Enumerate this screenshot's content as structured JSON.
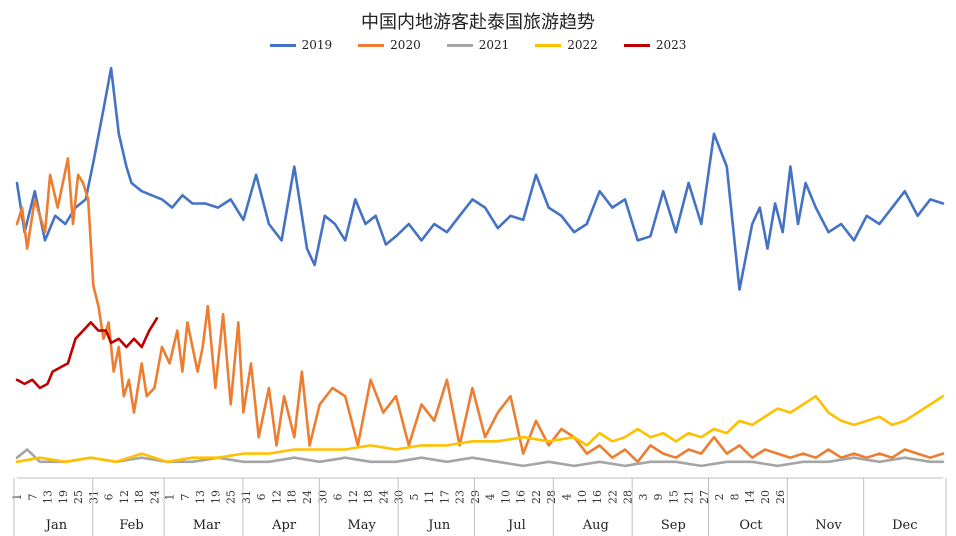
{
  "chart_data": {
    "type": "line",
    "title": "中国内地游客赴泰国旅游趋势",
    "xlabel": "",
    "ylabel": "",
    "months": [
      "Jan",
      "Feb",
      "Mar",
      "Apr",
      "May",
      "Jun",
      "Jul",
      "Aug",
      "Sep",
      "Oct",
      "Nov",
      "Dec"
    ],
    "month_days": [
      31,
      28,
      31,
      30,
      31,
      30,
      31,
      31,
      30,
      31,
      30,
      31
    ],
    "tick_labels": [
      "1",
      "7",
      "13",
      "19",
      "25",
      "31",
      "6",
      "12",
      "18",
      "24",
      "1",
      "7",
      "13",
      "19",
      "25",
      "31",
      "6",
      "12",
      "18",
      "24",
      "30",
      "6",
      "12",
      "18",
      "24",
      "30",
      "5",
      "11",
      "17",
      "23",
      "29",
      "4",
      "10",
      "16",
      "22",
      "28",
      "4",
      "10",
      "16",
      "22",
      "28",
      "3",
      "9",
      "15",
      "21",
      "27",
      "2",
      "8",
      "14",
      "20",
      "26"
    ],
    "ylim": [
      0,
      100
    ],
    "series": [
      {
        "name": "2019",
        "color": "#4472c4",
        "days": [
          1,
          4,
          8,
          12,
          16,
          20,
          24,
          28,
          31,
          35,
          38,
          41,
          44,
          46,
          50,
          54,
          58,
          62,
          66,
          70,
          75,
          80,
          85,
          90,
          95,
          100,
          105,
          110,
          115,
          118,
          122,
          126,
          130,
          134,
          138,
          142,
          146,
          150,
          155,
          160,
          165,
          170,
          175,
          180,
          185,
          190,
          195,
          200,
          205,
          210,
          215,
          220,
          225,
          230,
          235,
          240,
          245,
          250,
          255,
          260,
          265,
          270,
          275,
          280,
          285,
          290,
          293,
          296,
          299,
          302,
          305,
          308,
          311,
          315,
          320,
          325,
          330,
          335,
          340,
          345,
          350,
          355,
          360,
          365
        ],
        "values": [
          70,
          58,
          68,
          56,
          62,
          60,
          64,
          66,
          75,
          88,
          98,
          82,
          74,
          70,
          68,
          67,
          66,
          64,
          67,
          65,
          65,
          64,
          66,
          61,
          72,
          60,
          56,
          74,
          54,
          50,
          62,
          60,
          56,
          66,
          60,
          62,
          55,
          57,
          60,
          56,
          60,
          58,
          62,
          66,
          64,
          59,
          62,
          61,
          72,
          64,
          62,
          58,
          60,
          68,
          64,
          66,
          56,
          57,
          68,
          58,
          70,
          60,
          82,
          74,
          44,
          60,
          64,
          54,
          65,
          58,
          74,
          60,
          70,
          64,
          58,
          60,
          56,
          62,
          60,
          64,
          68,
          62,
          66,
          65
        ]
      },
      {
        "name": "2020",
        "color": "#ed7d31",
        "days": [
          1,
          3,
          5,
          8,
          10,
          12,
          14,
          17,
          19,
          21,
          23,
          25,
          27,
          29,
          31,
          33,
          35,
          37,
          39,
          41,
          43,
          45,
          47,
          50,
          52,
          55,
          58,
          61,
          64,
          66,
          68,
          72,
          74,
          76,
          79,
          82,
          85,
          88,
          90,
          93,
          96,
          100,
          103,
          106,
          110,
          113,
          116,
          120,
          125,
          130,
          135,
          140,
          145,
          150,
          155,
          160,
          165,
          170,
          175,
          180,
          185,
          190,
          195,
          200,
          205,
          210,
          215,
          220,
          225,
          230,
          235,
          240,
          245,
          250,
          255,
          260,
          265,
          270,
          275,
          280,
          285,
          290,
          295,
          300,
          305,
          310,
          315,
          320,
          325,
          330,
          335,
          340,
          345,
          350,
          355,
          360,
          365
        ],
        "values": [
          60,
          64,
          54,
          66,
          62,
          58,
          72,
          64,
          70,
          76,
          60,
          72,
          70,
          66,
          45,
          40,
          32,
          36,
          24,
          30,
          18,
          22,
          14,
          26,
          18,
          20,
          30,
          26,
          34,
          24,
          36,
          24,
          30,
          40,
          20,
          38,
          16,
          36,
          14,
          26,
          8,
          20,
          6,
          18,
          8,
          24,
          6,
          16,
          20,
          18,
          6,
          22,
          14,
          18,
          6,
          16,
          12,
          22,
          6,
          20,
          8,
          14,
          18,
          4,
          12,
          6,
          10,
          8,
          4,
          6,
          3,
          5,
          2,
          6,
          4,
          3,
          5,
          4,
          8,
          4,
          6,
          3,
          5,
          4,
          3,
          4,
          3,
          5,
          3,
          4,
          3,
          4,
          3,
          5,
          4,
          3,
          4
        ]
      },
      {
        "name": "2021",
        "color": "#a5a5a5",
        "days": [
          1,
          5,
          10,
          20,
          30,
          40,
          50,
          60,
          70,
          80,
          90,
          100,
          110,
          120,
          130,
          140,
          150,
          160,
          170,
          180,
          190,
          200,
          210,
          220,
          230,
          240,
          250,
          260,
          270,
          280,
          290,
          300,
          310,
          320,
          330,
          340,
          350,
          360,
          365
        ],
        "values": [
          3,
          5,
          2,
          2,
          3,
          2,
          3,
          2,
          2,
          3,
          2,
          2,
          3,
          2,
          3,
          2,
          2,
          3,
          2,
          3,
          2,
          1,
          2,
          1,
          2,
          1,
          2,
          2,
          1,
          2,
          2,
          1,
          2,
          2,
          3,
          2,
          3,
          2,
          2
        ]
      },
      {
        "name": "2022",
        "color": "#ffc000",
        "days": [
          1,
          10,
          20,
          30,
          40,
          50,
          60,
          70,
          80,
          90,
          100,
          110,
          120,
          130,
          140,
          150,
          160,
          170,
          180,
          190,
          200,
          210,
          220,
          225,
          230,
          235,
          240,
          245,
          250,
          255,
          260,
          265,
          270,
          275,
          280,
          285,
          290,
          295,
          300,
          305,
          310,
          315,
          320,
          325,
          330,
          335,
          340,
          345,
          350,
          355,
          360,
          365
        ],
        "values": [
          2,
          3,
          2,
          3,
          2,
          4,
          2,
          3,
          3,
          4,
          4,
          5,
          5,
          5,
          6,
          5,
          6,
          6,
          7,
          7,
          8,
          7,
          8,
          6,
          9,
          7,
          8,
          10,
          8,
          9,
          7,
          9,
          8,
          10,
          9,
          12,
          11,
          13,
          15,
          14,
          16,
          18,
          14,
          12,
          11,
          12,
          13,
          11,
          12,
          14,
          16,
          18
        ]
      },
      {
        "name": "2023",
        "color": "#c00000",
        "days": [
          1,
          4,
          7,
          10,
          13,
          15,
          18,
          21,
          24,
          27,
          30,
          33,
          36,
          38,
          41,
          44,
          47,
          50,
          53,
          56
        ],
        "values": [
          22,
          21,
          22,
          20,
          21,
          24,
          25,
          26,
          32,
          34,
          36,
          34,
          34,
          31,
          32,
          30,
          32,
          30,
          34,
          37
        ]
      }
    ]
  }
}
